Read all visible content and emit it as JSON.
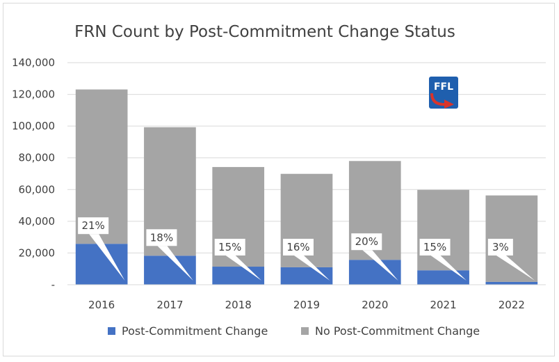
{
  "chart_data": {
    "type": "bar",
    "stacked": true,
    "title": "FRN Count by Post-Commitment Change Status",
    "categories": [
      "2016",
      "2017",
      "2018",
      "2019",
      "2020",
      "2021",
      "2022"
    ],
    "series": [
      {
        "name": "Post-Commitment Change",
        "color": "#4472c4",
        "values": [
          25800,
          18300,
          11400,
          11000,
          15700,
          9100,
          1800
        ]
      },
      {
        "name": "No Post-Commitment Change",
        "color": "#a5a5a5",
        "values": [
          97300,
          81000,
          62800,
          58900,
          62300,
          50700,
          54500
        ]
      }
    ],
    "labels": [
      "21%",
      "18%",
      "15%",
      "16%",
      "20%",
      "15%",
      "3%"
    ],
    "ylim": [
      0,
      140000
    ],
    "yticks": [
      0,
      20000,
      40000,
      60000,
      80000,
      100000,
      120000,
      140000
    ],
    "ytick_labels": [
      "-",
      "20,000",
      "40,000",
      "60,000",
      "80,000",
      "100,000",
      "120,000",
      "140,000"
    ],
    "xlabel": "",
    "ylabel": "",
    "grid": true,
    "legend_position": "bottom"
  },
  "logo": {
    "text": "FFL",
    "icon": "ffl-logo-icon",
    "bg_color": "#1f5fae",
    "arrow_color": "#d9342b"
  }
}
